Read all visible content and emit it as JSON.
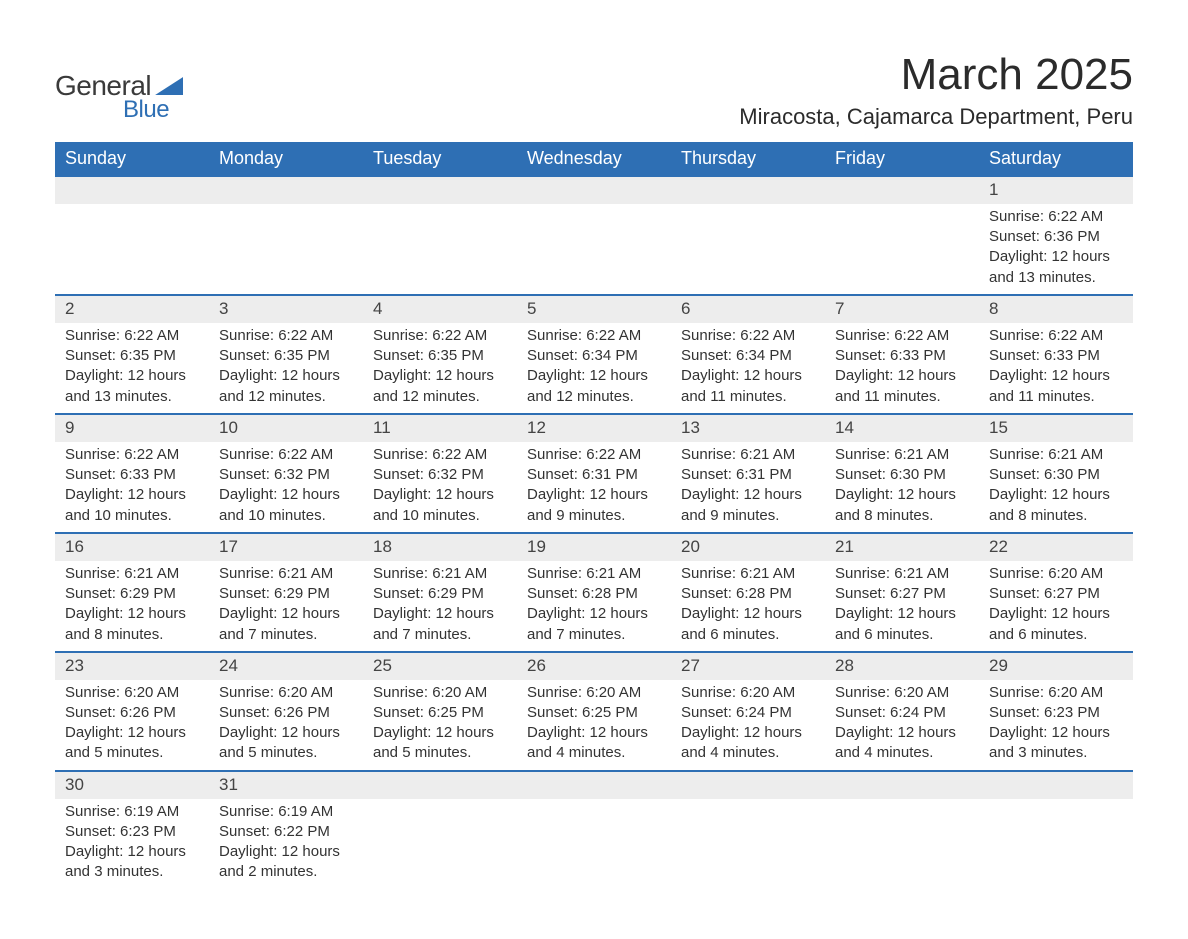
{
  "brand": {
    "part1": "General",
    "part2": "Blue"
  },
  "title": "March 2025",
  "location": "Miracosta, Cajamarca Department, Peru",
  "colors": {
    "header_bg": "#2e6fb4",
    "header_text": "#ffffff",
    "daynum_bg": "#ededed",
    "row_border": "#2e6fb4",
    "body_text": "#333333",
    "page_bg": "#ffffff"
  },
  "typography": {
    "title_fontsize": 44,
    "location_fontsize": 22,
    "dayheader_fontsize": 18,
    "cell_fontsize": 15
  },
  "day_headers": [
    "Sunday",
    "Monday",
    "Tuesday",
    "Wednesday",
    "Thursday",
    "Friday",
    "Saturday"
  ],
  "weeks": [
    [
      null,
      null,
      null,
      null,
      null,
      null,
      {
        "n": "1",
        "sunrise": "Sunrise: 6:22 AM",
        "sunset": "Sunset: 6:36 PM",
        "day1": "Daylight: 12 hours",
        "day2": "and 13 minutes."
      }
    ],
    [
      {
        "n": "2",
        "sunrise": "Sunrise: 6:22 AM",
        "sunset": "Sunset: 6:35 PM",
        "day1": "Daylight: 12 hours",
        "day2": "and 13 minutes."
      },
      {
        "n": "3",
        "sunrise": "Sunrise: 6:22 AM",
        "sunset": "Sunset: 6:35 PM",
        "day1": "Daylight: 12 hours",
        "day2": "and 12 minutes."
      },
      {
        "n": "4",
        "sunrise": "Sunrise: 6:22 AM",
        "sunset": "Sunset: 6:35 PM",
        "day1": "Daylight: 12 hours",
        "day2": "and 12 minutes."
      },
      {
        "n": "5",
        "sunrise": "Sunrise: 6:22 AM",
        "sunset": "Sunset: 6:34 PM",
        "day1": "Daylight: 12 hours",
        "day2": "and 12 minutes."
      },
      {
        "n": "6",
        "sunrise": "Sunrise: 6:22 AM",
        "sunset": "Sunset: 6:34 PM",
        "day1": "Daylight: 12 hours",
        "day2": "and 11 minutes."
      },
      {
        "n": "7",
        "sunrise": "Sunrise: 6:22 AM",
        "sunset": "Sunset: 6:33 PM",
        "day1": "Daylight: 12 hours",
        "day2": "and 11 minutes."
      },
      {
        "n": "8",
        "sunrise": "Sunrise: 6:22 AM",
        "sunset": "Sunset: 6:33 PM",
        "day1": "Daylight: 12 hours",
        "day2": "and 11 minutes."
      }
    ],
    [
      {
        "n": "9",
        "sunrise": "Sunrise: 6:22 AM",
        "sunset": "Sunset: 6:33 PM",
        "day1": "Daylight: 12 hours",
        "day2": "and 10 minutes."
      },
      {
        "n": "10",
        "sunrise": "Sunrise: 6:22 AM",
        "sunset": "Sunset: 6:32 PM",
        "day1": "Daylight: 12 hours",
        "day2": "and 10 minutes."
      },
      {
        "n": "11",
        "sunrise": "Sunrise: 6:22 AM",
        "sunset": "Sunset: 6:32 PM",
        "day1": "Daylight: 12 hours",
        "day2": "and 10 minutes."
      },
      {
        "n": "12",
        "sunrise": "Sunrise: 6:22 AM",
        "sunset": "Sunset: 6:31 PM",
        "day1": "Daylight: 12 hours",
        "day2": "and 9 minutes."
      },
      {
        "n": "13",
        "sunrise": "Sunrise: 6:21 AM",
        "sunset": "Sunset: 6:31 PM",
        "day1": "Daylight: 12 hours",
        "day2": "and 9 minutes."
      },
      {
        "n": "14",
        "sunrise": "Sunrise: 6:21 AM",
        "sunset": "Sunset: 6:30 PM",
        "day1": "Daylight: 12 hours",
        "day2": "and 8 minutes."
      },
      {
        "n": "15",
        "sunrise": "Sunrise: 6:21 AM",
        "sunset": "Sunset: 6:30 PM",
        "day1": "Daylight: 12 hours",
        "day2": "and 8 minutes."
      }
    ],
    [
      {
        "n": "16",
        "sunrise": "Sunrise: 6:21 AM",
        "sunset": "Sunset: 6:29 PM",
        "day1": "Daylight: 12 hours",
        "day2": "and 8 minutes."
      },
      {
        "n": "17",
        "sunrise": "Sunrise: 6:21 AM",
        "sunset": "Sunset: 6:29 PM",
        "day1": "Daylight: 12 hours",
        "day2": "and 7 minutes."
      },
      {
        "n": "18",
        "sunrise": "Sunrise: 6:21 AM",
        "sunset": "Sunset: 6:29 PM",
        "day1": "Daylight: 12 hours",
        "day2": "and 7 minutes."
      },
      {
        "n": "19",
        "sunrise": "Sunrise: 6:21 AM",
        "sunset": "Sunset: 6:28 PM",
        "day1": "Daylight: 12 hours",
        "day2": "and 7 minutes."
      },
      {
        "n": "20",
        "sunrise": "Sunrise: 6:21 AM",
        "sunset": "Sunset: 6:28 PM",
        "day1": "Daylight: 12 hours",
        "day2": "and 6 minutes."
      },
      {
        "n": "21",
        "sunrise": "Sunrise: 6:21 AM",
        "sunset": "Sunset: 6:27 PM",
        "day1": "Daylight: 12 hours",
        "day2": "and 6 minutes."
      },
      {
        "n": "22",
        "sunrise": "Sunrise: 6:20 AM",
        "sunset": "Sunset: 6:27 PM",
        "day1": "Daylight: 12 hours",
        "day2": "and 6 minutes."
      }
    ],
    [
      {
        "n": "23",
        "sunrise": "Sunrise: 6:20 AM",
        "sunset": "Sunset: 6:26 PM",
        "day1": "Daylight: 12 hours",
        "day2": "and 5 minutes."
      },
      {
        "n": "24",
        "sunrise": "Sunrise: 6:20 AM",
        "sunset": "Sunset: 6:26 PM",
        "day1": "Daylight: 12 hours",
        "day2": "and 5 minutes."
      },
      {
        "n": "25",
        "sunrise": "Sunrise: 6:20 AM",
        "sunset": "Sunset: 6:25 PM",
        "day1": "Daylight: 12 hours",
        "day2": "and 5 minutes."
      },
      {
        "n": "26",
        "sunrise": "Sunrise: 6:20 AM",
        "sunset": "Sunset: 6:25 PM",
        "day1": "Daylight: 12 hours",
        "day2": "and 4 minutes."
      },
      {
        "n": "27",
        "sunrise": "Sunrise: 6:20 AM",
        "sunset": "Sunset: 6:24 PM",
        "day1": "Daylight: 12 hours",
        "day2": "and 4 minutes."
      },
      {
        "n": "28",
        "sunrise": "Sunrise: 6:20 AM",
        "sunset": "Sunset: 6:24 PM",
        "day1": "Daylight: 12 hours",
        "day2": "and 4 minutes."
      },
      {
        "n": "29",
        "sunrise": "Sunrise: 6:20 AM",
        "sunset": "Sunset: 6:23 PM",
        "day1": "Daylight: 12 hours",
        "day2": "and 3 minutes."
      }
    ],
    [
      {
        "n": "30",
        "sunrise": "Sunrise: 6:19 AM",
        "sunset": "Sunset: 6:23 PM",
        "day1": "Daylight: 12 hours",
        "day2": "and 3 minutes."
      },
      {
        "n": "31",
        "sunrise": "Sunrise: 6:19 AM",
        "sunset": "Sunset: 6:22 PM",
        "day1": "Daylight: 12 hours",
        "day2": "and 2 minutes."
      },
      null,
      null,
      null,
      null,
      null
    ]
  ]
}
